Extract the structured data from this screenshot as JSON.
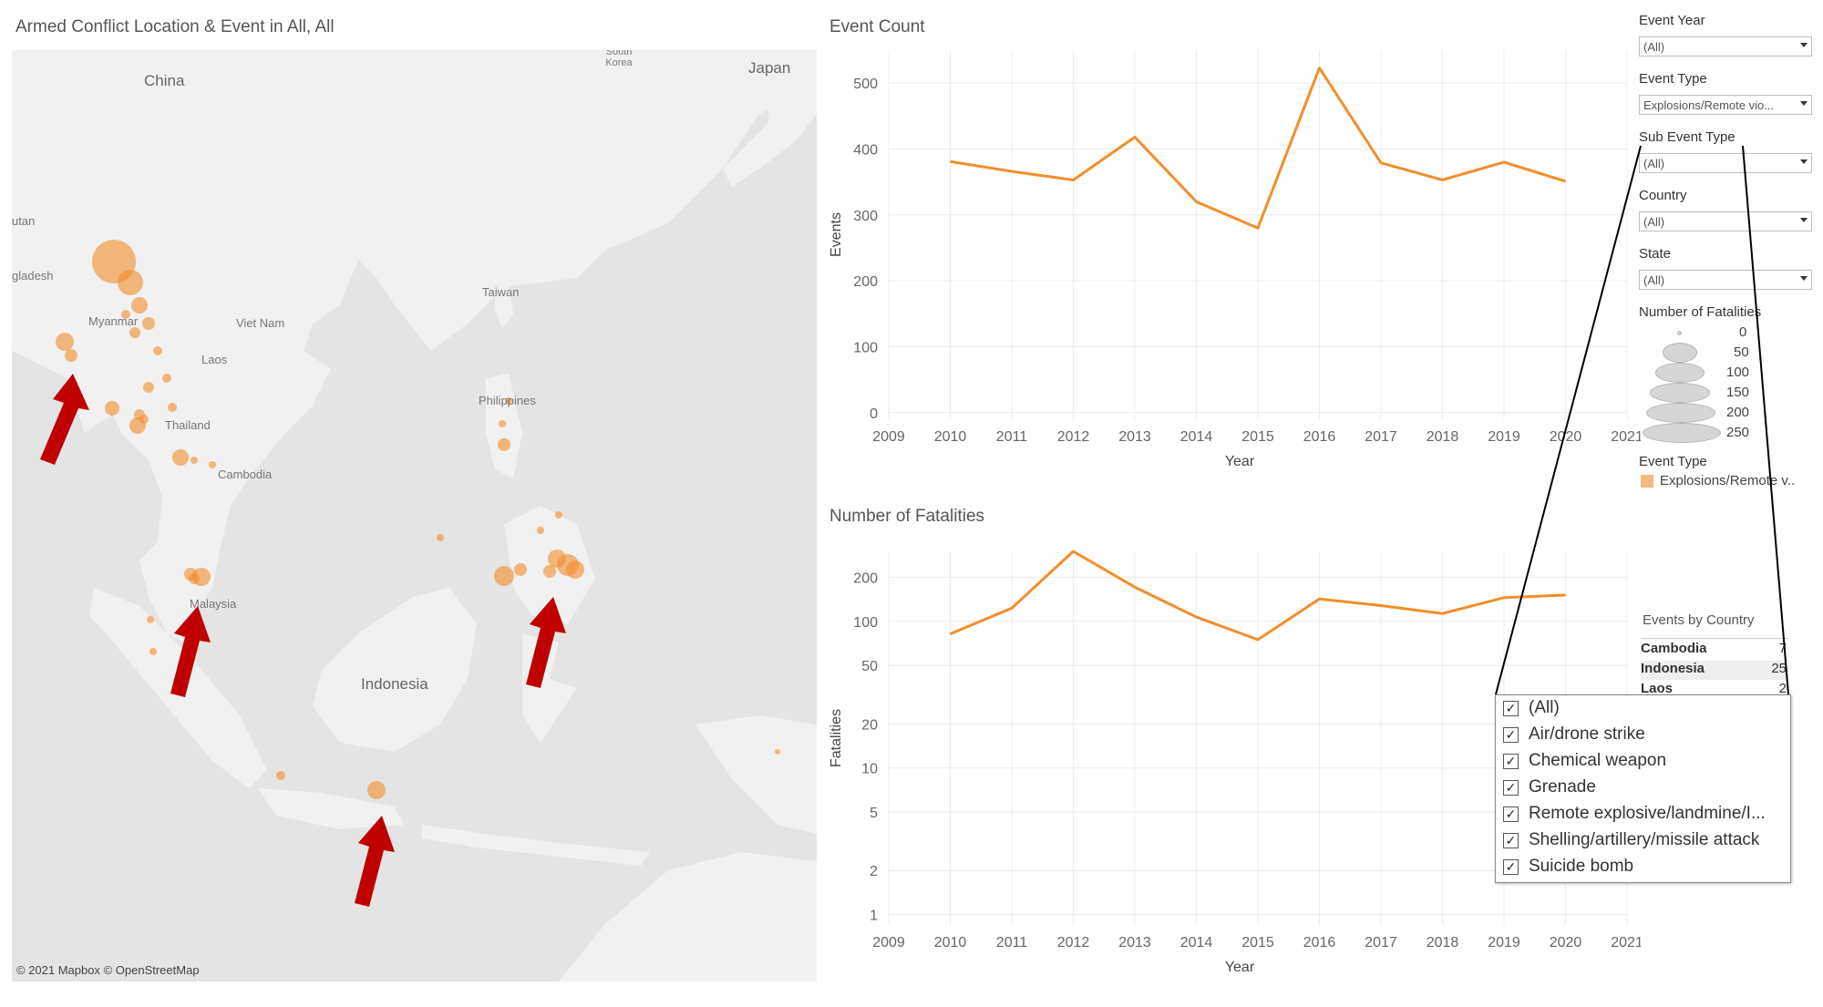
{
  "map": {
    "title": "Armed Conflict Location & Event in All, All",
    "attribution": "© 2021 Mapbox © OpenStreetMap",
    "labels": [
      {
        "id": "china",
        "text": "China"
      },
      {
        "id": "japan",
        "text": "Japan"
      },
      {
        "id": "south-korea",
        "text": "South Korea"
      },
      {
        "id": "bhutan",
        "text": "utan"
      },
      {
        "id": "bangladesh",
        "text": "gladesh"
      },
      {
        "id": "myanmar",
        "text": "Myanmar"
      },
      {
        "id": "vietnam",
        "text": "Viet Nam"
      },
      {
        "id": "taiwan",
        "text": "Taiwan"
      },
      {
        "id": "laos",
        "text": "Laos"
      },
      {
        "id": "thailand",
        "text": "Thailand"
      },
      {
        "id": "cambodia",
        "text": "Cambodia"
      },
      {
        "id": "philippines",
        "text": "Philippines"
      },
      {
        "id": "malaysia",
        "text": "Malaysia"
      },
      {
        "id": "indonesia",
        "text": "Indonesia"
      }
    ],
    "bubble_color": "#f28e2b"
  },
  "event_count": {
    "title": "Event Count",
    "xlabel": "Year",
    "ylabel": "Events"
  },
  "fatalities": {
    "title": "Number of Fatalities",
    "xlabel": "Year",
    "ylabel": "Fatalities"
  },
  "filters": {
    "event_year": {
      "label": "Event Year",
      "value": "(All)"
    },
    "event_type": {
      "label": "Event Type",
      "value": "Explosions/Remote vio..."
    },
    "sub_event_type": {
      "label": "Sub Event Type",
      "value": "(All)"
    },
    "country": {
      "label": "Country",
      "value": "(All)"
    },
    "state": {
      "label": "State",
      "value": "(All)"
    }
  },
  "size_legend": {
    "title": "Number of Fatalities",
    "values": [
      "0",
      "50",
      "100",
      "150",
      "200",
      "250"
    ]
  },
  "color_legend": {
    "title": "Event Type",
    "item": "Explosions/Remote v..",
    "color": "#f5b982"
  },
  "events_by_country": {
    "title": "Events by Country",
    "rows": [
      {
        "country": "Cambodia",
        "value": "7"
      },
      {
        "country": "Indonesia",
        "value": "25"
      },
      {
        "country": "Laos",
        "value": "2"
      }
    ]
  },
  "sub_event_dropdown": {
    "items": [
      {
        "label": "(All)",
        "checked": true
      },
      {
        "label": "Air/drone strike",
        "checked": true
      },
      {
        "label": "Chemical weapon",
        "checked": true
      },
      {
        "label": "Grenade",
        "checked": true
      },
      {
        "label": "Remote explosive/landmine/I...",
        "checked": true
      },
      {
        "label": "Shelling/artillery/missile attack",
        "checked": true
      },
      {
        "label": "Suicide bomb",
        "checked": true
      }
    ]
  },
  "chart_data": [
    {
      "type": "line",
      "title": "Event Count",
      "xlabel": "Year",
      "ylabel": "Events",
      "x": [
        2010,
        2011,
        2012,
        2013,
        2014,
        2015,
        2016,
        2017,
        2018,
        2019,
        2020
      ],
      "series": [
        {
          "values": [
            381,
            366,
            353,
            418,
            320,
            280,
            523,
            379,
            353,
            380,
            351
          ]
        }
      ],
      "xlim": [
        2009,
        2021
      ],
      "x_ticks": [
        "2009",
        "2010",
        "2011",
        "2012",
        "2013",
        "2014",
        "2015",
        "2016",
        "2017",
        "2018",
        "2019",
        "2020",
        "2021"
      ],
      "ylim": [
        -10,
        550
      ],
      "y_ticks": [
        0,
        100,
        200,
        300,
        400,
        500
      ],
      "color": "#f28e2b",
      "grid": true
    },
    {
      "type": "line",
      "title": "Number of Fatalities",
      "xlabel": "Year",
      "ylabel": "Fatalities",
      "y_scale": "log",
      "x": [
        2010,
        2011,
        2012,
        2013,
        2014,
        2015,
        2016,
        2017,
        2018,
        2019,
        2020
      ],
      "series": [
        {
          "values": [
            82,
            123,
            300,
            171,
            107,
            75,
            142,
            128,
            113,
            145,
            151
          ]
        }
      ],
      "xlim": [
        2009,
        2021
      ],
      "x_ticks": [
        "2009",
        "2010",
        "2011",
        "2012",
        "2013",
        "2014",
        "2015",
        "2016",
        "2017",
        "2018",
        "2019",
        "2020",
        "2021"
      ],
      "y_ticks": [
        1,
        2,
        5,
        10,
        20,
        50,
        100,
        200
      ],
      "color": "#f28e2b",
      "grid": true
    }
  ]
}
